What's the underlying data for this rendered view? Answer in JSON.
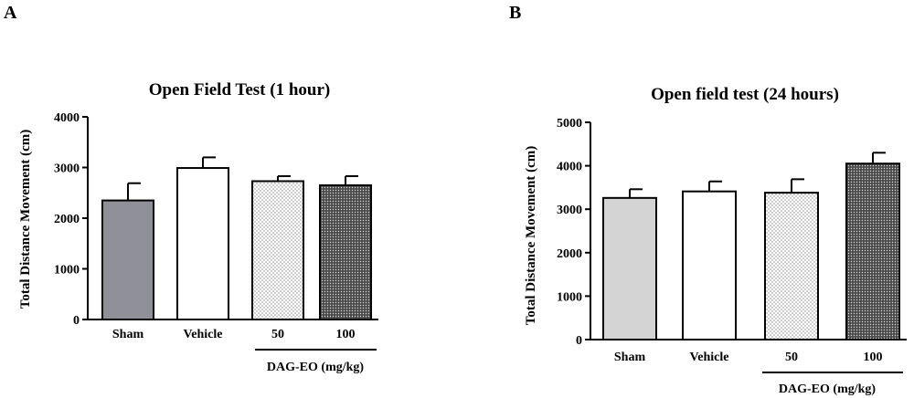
{
  "chart_data": [
    {
      "panel": "A",
      "type": "bar",
      "title": "Open Field Test (1 hour)",
      "ylabel": "Total Distance Movement (cm)",
      "ylim": [
        0,
        4000
      ],
      "yticks": [
        0,
        1000,
        2000,
        3000,
        4000
      ],
      "categories": [
        "Sham",
        "Vehicle",
        "50",
        "100"
      ],
      "values": [
        2350,
        2990,
        2730,
        2650
      ],
      "errors": [
        340,
        210,
        100,
        180
      ],
      "fills": [
        "gray",
        "white",
        "light-dots",
        "dense-dots"
      ],
      "group_label": "DAG-EO (mg/kg)"
    },
    {
      "panel": "B",
      "type": "bar",
      "title": "Open field test (24 hours)",
      "ylabel": "Total Distance Movement (cm)",
      "ylim": [
        0,
        5000
      ],
      "yticks": [
        0,
        1000,
        2000,
        3000,
        4000,
        5000
      ],
      "categories": [
        "Sham",
        "Vehicle",
        "50",
        "100"
      ],
      "values": [
        3260,
        3410,
        3380,
        4050
      ],
      "errors": [
        200,
        230,
        310,
        250
      ],
      "fills": [
        "gray-light",
        "white",
        "light-dots",
        "dense-dots"
      ],
      "group_label": "DAG-EO (mg/kg)"
    }
  ],
  "colors": {
    "axis": "#000000",
    "gray": "#909098",
    "gray-light": "#d4d4d4"
  }
}
